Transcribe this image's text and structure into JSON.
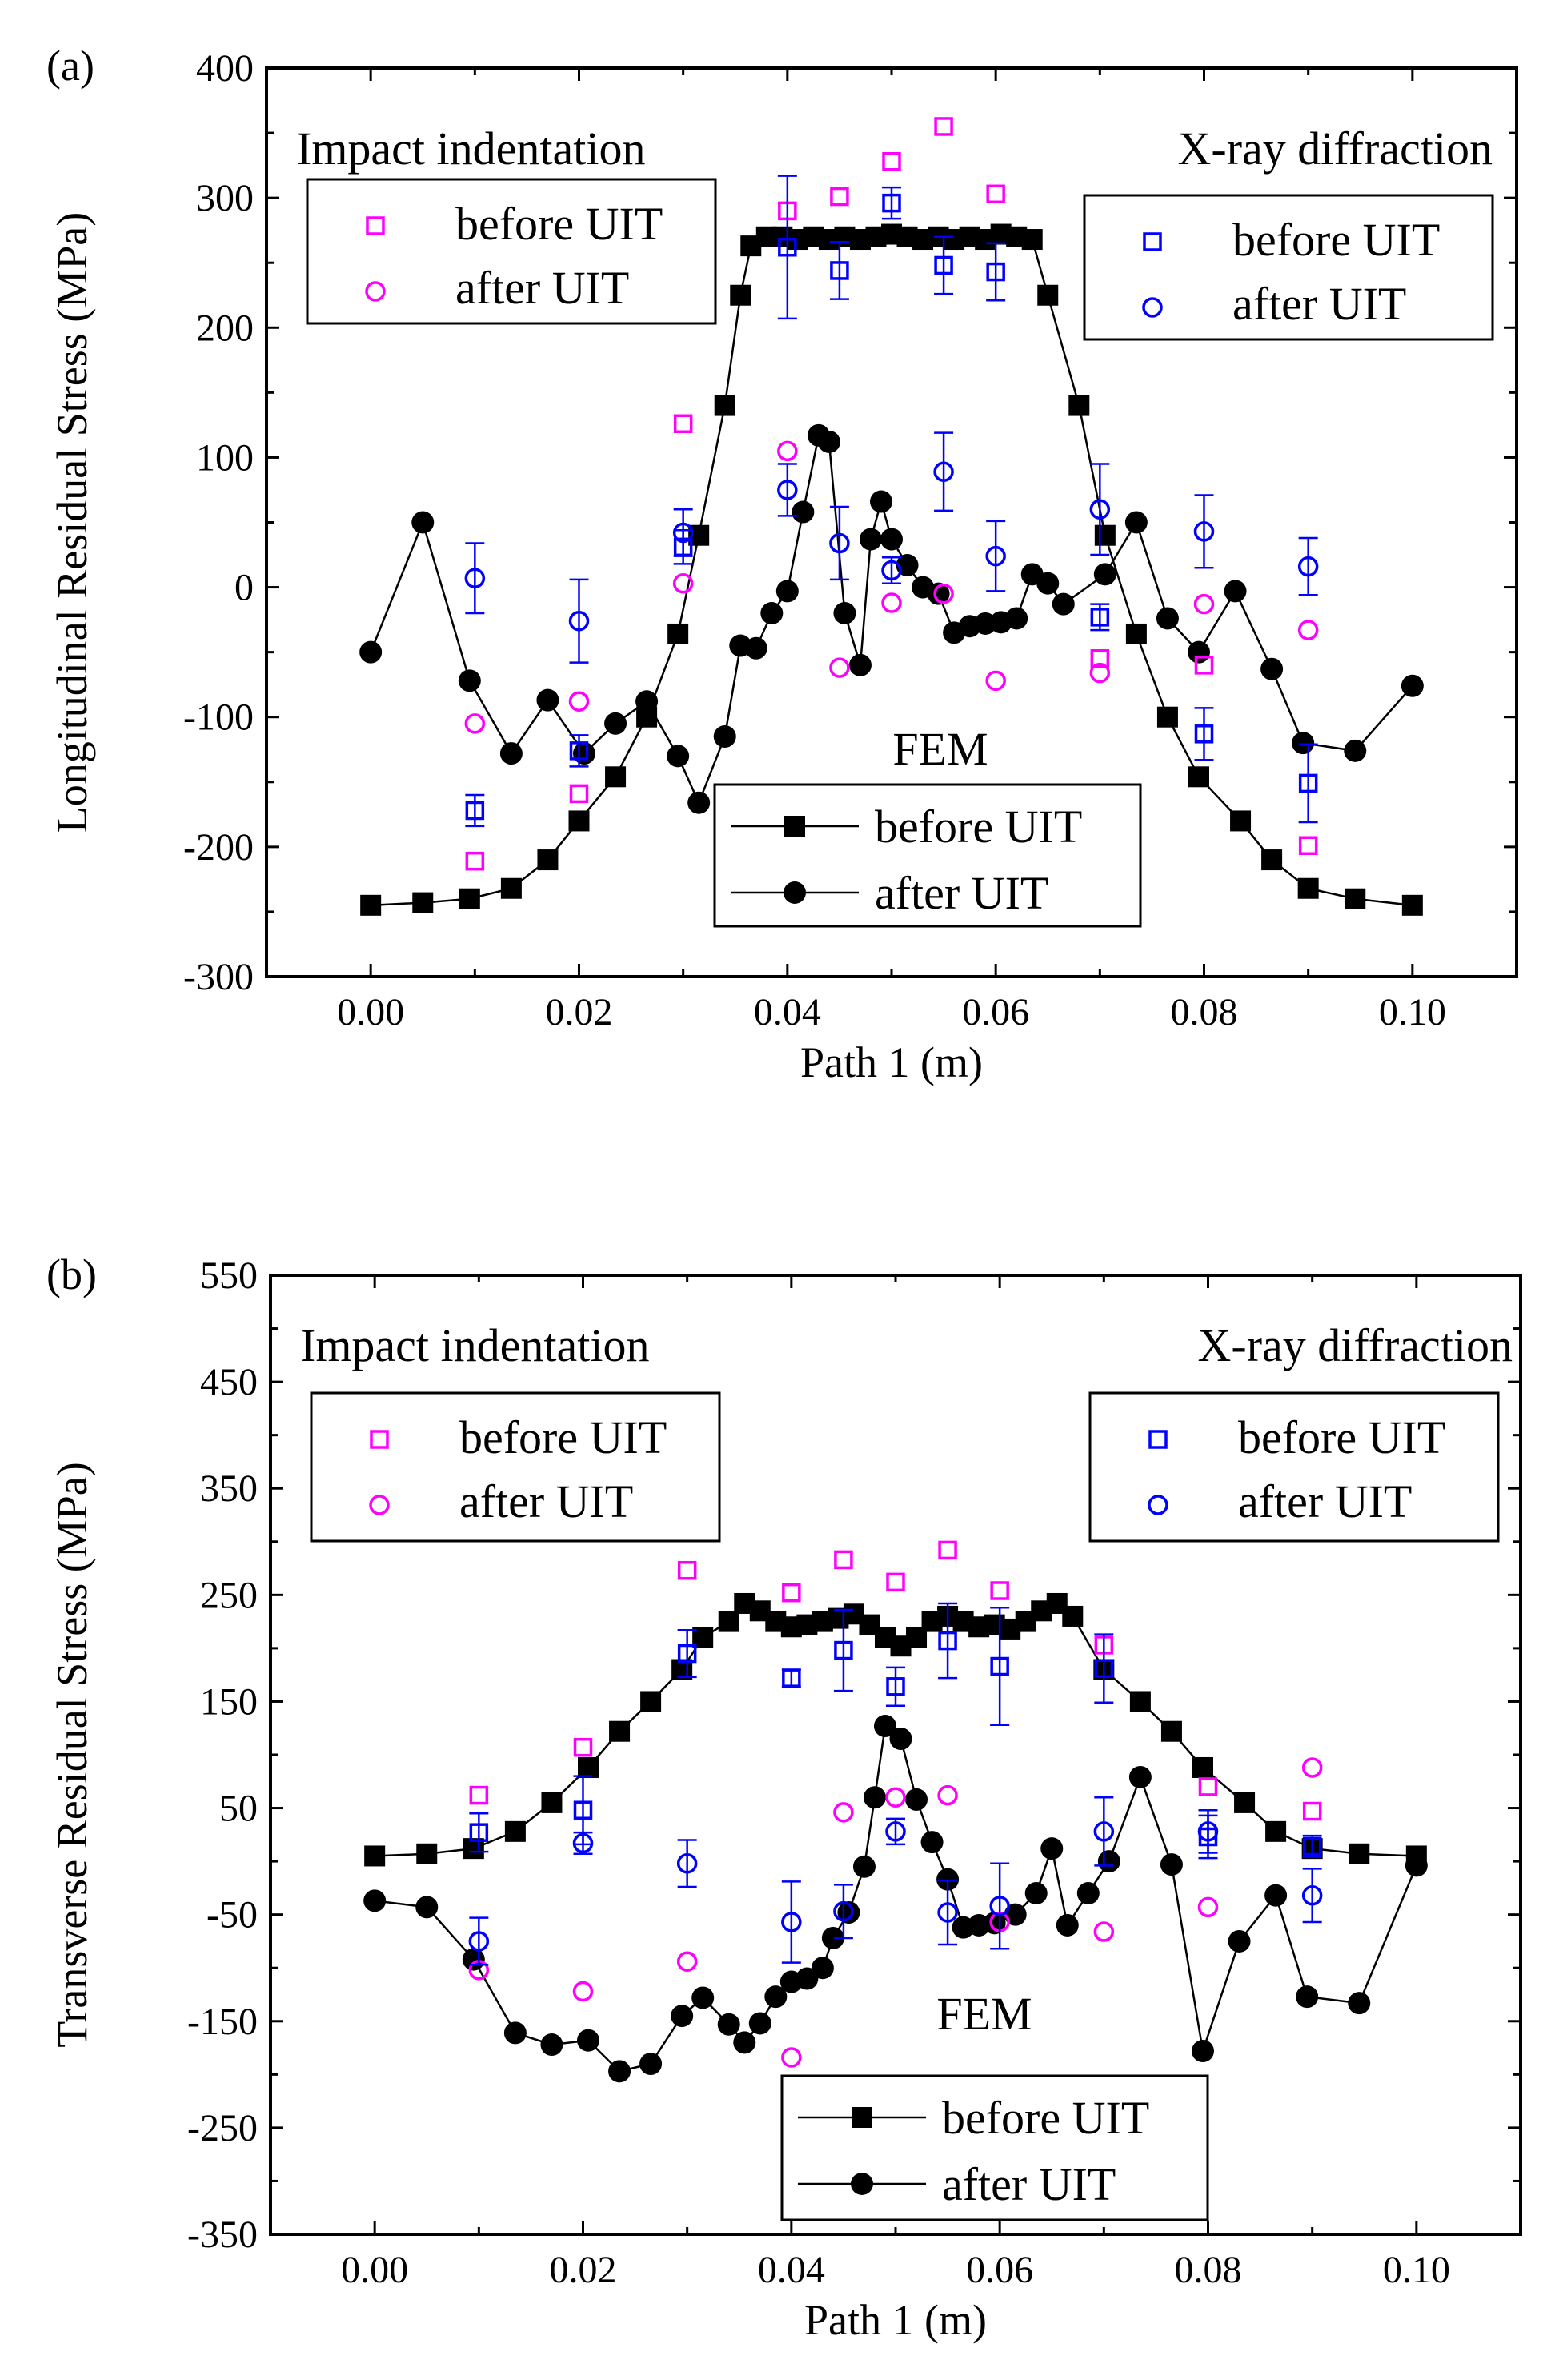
{
  "colors": {
    "axis": "#000000",
    "fem": "#000000",
    "indentation": "#ff00ff",
    "xray": "#0000ff"
  },
  "chart_data": [
    {
      "panel_label": "(a)",
      "type": "scatter",
      "title": "",
      "xlabel": "Path 1 (m)",
      "ylabel": "Longitudinal Residual Stress (MPa)",
      "xlim": [
        -0.01,
        0.11
      ],
      "ylim": [
        -300,
        400
      ],
      "xticks": [
        0.0,
        0.02,
        0.04,
        0.06,
        0.08,
        0.1
      ],
      "xtick_labels": [
        "0.00",
        "0.02",
        "0.04",
        "0.06",
        "0.08",
        "0.10"
      ],
      "yticks": [
        -300,
        -200,
        -100,
        0,
        100,
        200,
        300,
        400
      ],
      "ytick_labels": [
        "-300",
        "-200",
        "-100",
        "0",
        "100",
        "200",
        "300",
        "400"
      ],
      "legends": {
        "indentation": {
          "title": "Impact indentation",
          "before": "before UIT",
          "after": "after UIT"
        },
        "xray": {
          "title": "X-ray diffraction",
          "before": "before UIT",
          "after": "after UIT"
        },
        "fem": {
          "title": "FEM",
          "before": "before UIT",
          "after": "after UIT"
        }
      },
      "series": [
        {
          "name": "FEM before UIT",
          "marker": "filled-square",
          "line": true,
          "x": [
            0.0,
            0.005,
            0.0095,
            0.0135,
            0.017,
            0.02,
            0.0235,
            0.0265,
            0.0295,
            0.0315,
            0.034,
            0.0355,
            0.0365,
            0.038,
            0.0395,
            0.041,
            0.0425,
            0.044,
            0.0455,
            0.047,
            0.0485,
            0.05,
            0.0515,
            0.053,
            0.0545,
            0.056,
            0.0575,
            0.059,
            0.0605,
            0.062,
            0.0635,
            0.065,
            0.068,
            0.0705,
            0.0735,
            0.0765,
            0.0795,
            0.0835,
            0.0865,
            0.09,
            0.0945,
            0.1
          ],
          "y": [
            -245,
            -243,
            -240,
            -232,
            -210,
            -180,
            -146,
            -100,
            -36,
            40,
            140,
            225,
            263,
            270,
            270,
            268,
            270,
            268,
            270,
            268,
            270,
            272,
            270,
            268,
            270,
            268,
            270,
            268,
            272,
            270,
            268,
            225,
            140,
            40,
            -36,
            -100,
            -146,
            -180,
            -210,
            -232,
            -240,
            -245
          ]
        },
        {
          "name": "FEM after UIT",
          "marker": "filled-circle",
          "line": true,
          "x": [
            0.0,
            0.005,
            0.0095,
            0.0135,
            0.017,
            0.0205,
            0.0235,
            0.0265,
            0.0295,
            0.0315,
            0.034,
            0.0355,
            0.037,
            0.0385,
            0.04,
            0.0415,
            0.043,
            0.044,
            0.0455,
            0.047,
            0.048,
            0.049,
            0.05,
            0.0515,
            0.053,
            0.0545,
            0.056,
            0.0575,
            0.059,
            0.0605,
            0.062,
            0.0635,
            0.065,
            0.0665,
            0.0705,
            0.0735,
            0.0765,
            0.0795,
            0.083,
            0.0865,
            0.0895,
            0.0945,
            0.1
          ],
          "y": [
            -50,
            50,
            -72,
            -128,
            -87,
            -128,
            -105,
            -88,
            -130,
            -166,
            -115,
            -45,
            -47,
            -20,
            -3,
            58,
            117,
            112,
            -20,
            -60,
            37,
            66,
            37,
            17,
            0,
            -5,
            -35,
            -30,
            -28,
            -27,
            -24,
            10,
            3,
            -13,
            10,
            50,
            -24,
            -50,
            -3,
            -63,
            -120,
            -126,
            -76
          ]
        },
        {
          "name": "Impact indentation before UIT",
          "marker": "open-square",
          "x": [
            0.01,
            0.02,
            0.03,
            0.04,
            0.045,
            0.05,
            0.055,
            0.06,
            0.07,
            0.08,
            0.09
          ],
          "y": [
            -211,
            -159,
            126,
            290,
            301,
            328,
            355,
            303,
            -55,
            -60,
            -199
          ]
        },
        {
          "name": "Impact indentation after UIT",
          "marker": "open-circle",
          "x": [
            0.01,
            0.02,
            0.03,
            0.04,
            0.045,
            0.05,
            0.055,
            0.06,
            0.07,
            0.08,
            0.09
          ],
          "y": [
            -105,
            -88,
            3,
            105,
            -62,
            -12,
            -5,
            -72,
            -66,
            -13,
            -33
          ]
        },
        {
          "name": "X-ray diffraction before UIT",
          "marker": "open-square",
          "error_bars": true,
          "x": [
            0.01,
            0.02,
            0.03,
            0.04,
            0.045,
            0.05,
            0.055,
            0.06,
            0.07,
            0.08,
            0.09
          ],
          "y": [
            -172,
            -126,
            31,
            262,
            244,
            296,
            248,
            243,
            -23,
            -113,
            -151
          ],
          "err": [
            12,
            12,
            13,
            55,
            22,
            12,
            22,
            22,
            10,
            20,
            30
          ]
        },
        {
          "name": "X-ray diffraction after UIT",
          "marker": "open-circle",
          "error_bars": true,
          "x": [
            0.01,
            0.02,
            0.03,
            0.04,
            0.045,
            0.05,
            0.055,
            0.06,
            0.07,
            0.08,
            0.09
          ],
          "y": [
            7,
            -26,
            42,
            75,
            34,
            13,
            89,
            24,
            60,
            43,
            16
          ],
          "err": [
            27,
            32,
            18,
            20,
            28,
            10,
            30,
            27,
            35,
            28,
            22
          ]
        }
      ]
    },
    {
      "panel_label": "(b)",
      "type": "scatter",
      "title": "",
      "xlabel": "Path 1 (m)",
      "ylabel": "Transverse Residual Stress (MPa)",
      "xlim": [
        -0.01,
        0.11
      ],
      "ylim": [
        -350,
        550
      ],
      "xticks": [
        0.0,
        0.02,
        0.04,
        0.06,
        0.08,
        0.1
      ],
      "xtick_labels": [
        "0.00",
        "0.02",
        "0.04",
        "0.06",
        "0.08",
        "0.10"
      ],
      "yticks": [
        -350,
        -250,
        -150,
        -50,
        50,
        150,
        250,
        350,
        450,
        550
      ],
      "ytick_labels": [
        "-350",
        "-250",
        "-150",
        "-50",
        "50",
        "150",
        "250",
        "350",
        "450",
        "550"
      ],
      "legends": {
        "indentation": {
          "title": "Impact indentation",
          "before": "before UIT",
          "after": "after UIT"
        },
        "xray": {
          "title": "X-ray diffraction",
          "before": "before UIT",
          "after": "after UIT"
        },
        "fem": {
          "title": "FEM",
          "before": "before UIT",
          "after": "after UIT"
        }
      },
      "series": [
        {
          "name": "FEM before UIT",
          "marker": "filled-square",
          "line": true,
          "x": [
            0.0,
            0.005,
            0.0095,
            0.0135,
            0.017,
            0.0205,
            0.0235,
            0.0265,
            0.0295,
            0.0315,
            0.034,
            0.0355,
            0.037,
            0.0385,
            0.04,
            0.0415,
            0.043,
            0.0445,
            0.046,
            0.0475,
            0.049,
            0.0505,
            0.052,
            0.0535,
            0.055,
            0.0565,
            0.058,
            0.0595,
            0.061,
            0.0625,
            0.064,
            0.0655,
            0.067,
            0.07,
            0.0735,
            0.0765,
            0.0795,
            0.0835,
            0.0865,
            0.09,
            0.0945,
            0.1
          ],
          "y": [
            5,
            7,
            12,
            28,
            55,
            88,
            122,
            150,
            180,
            210,
            225,
            242,
            235,
            225,
            220,
            222,
            225,
            228,
            232,
            222,
            210,
            202,
            210,
            225,
            230,
            225,
            220,
            222,
            218,
            225,
            235,
            242,
            230,
            180,
            150,
            122,
            88,
            55,
            28,
            12,
            7,
            5
          ]
        },
        {
          "name": "FEM after UIT",
          "marker": "filled-circle",
          "line": true,
          "x": [
            0.0,
            0.005,
            0.0095,
            0.0135,
            0.017,
            0.0205,
            0.0235,
            0.0265,
            0.0295,
            0.0315,
            0.034,
            0.0355,
            0.037,
            0.0385,
            0.04,
            0.0415,
            0.043,
            0.044,
            0.0455,
            0.047,
            0.048,
            0.049,
            0.0505,
            0.052,
            0.0535,
            0.055,
            0.0565,
            0.058,
            0.0595,
            0.0615,
            0.0635,
            0.065,
            0.0665,
            0.0685,
            0.0705,
            0.0735,
            0.0765,
            0.0795,
            0.083,
            0.0865,
            0.0895,
            0.0945,
            0.1
          ],
          "y": [
            -37,
            -43,
            -92,
            -161,
            -172,
            -168,
            -197,
            -190,
            -145,
            -128,
            -153,
            -170,
            -152,
            -127,
            -113,
            -110,
            -100,
            -72,
            -48,
            -5,
            60,
            127,
            115,
            58,
            18,
            -17,
            -62,
            -60,
            -58,
            -50,
            -30,
            12,
            -60,
            -30,
            0,
            79,
            -3,
            -178,
            -75,
            -32,
            -127,
            -133,
            -4
          ]
        },
        {
          "name": "Impact indentation before UIT",
          "marker": "open-square",
          "x": [
            0.01,
            0.02,
            0.03,
            0.04,
            0.045,
            0.05,
            0.055,
            0.06,
            0.07,
            0.08,
            0.09
          ],
          "y": [
            62,
            107,
            273,
            252,
            283,
            262,
            292,
            254,
            203,
            70,
            47
          ]
        },
        {
          "name": "Impact indentation after UIT",
          "marker": "open-circle",
          "x": [
            0.01,
            0.02,
            0.03,
            0.04,
            0.045,
            0.05,
            0.055,
            0.06,
            0.07,
            0.08,
            0.09
          ],
          "y": [
            -102,
            -122,
            -94,
            -184,
            46,
            60,
            62,
            -57,
            -66,
            -43,
            88
          ]
        },
        {
          "name": "X-ray diffraction before UIT",
          "marker": "open-square",
          "error_bars": true,
          "x": [
            0.01,
            0.02,
            0.03,
            0.04,
            0.045,
            0.05,
            0.055,
            0.06,
            0.07,
            0.08,
            0.09
          ],
          "y": [
            27,
            48,
            195,
            172,
            198,
            164,
            207,
            183,
            181,
            23,
            14
          ],
          "err": [
            18,
            32,
            22,
            8,
            38,
            18,
            35,
            55,
            32,
            20,
            10
          ]
        },
        {
          "name": "X-ray diffraction after UIT",
          "marker": "open-circle",
          "error_bars": true,
          "x": [
            0.01,
            0.02,
            0.03,
            0.04,
            0.045,
            0.05,
            0.055,
            0.06,
            0.07,
            0.08,
            0.09
          ],
          "y": [
            -75,
            17,
            -2,
            -57,
            -47,
            28,
            -48,
            -42,
            28,
            28,
            -32
          ],
          "err": [
            22,
            10,
            22,
            38,
            25,
            12,
            30,
            40,
            32,
            20,
            25
          ]
        }
      ]
    }
  ]
}
